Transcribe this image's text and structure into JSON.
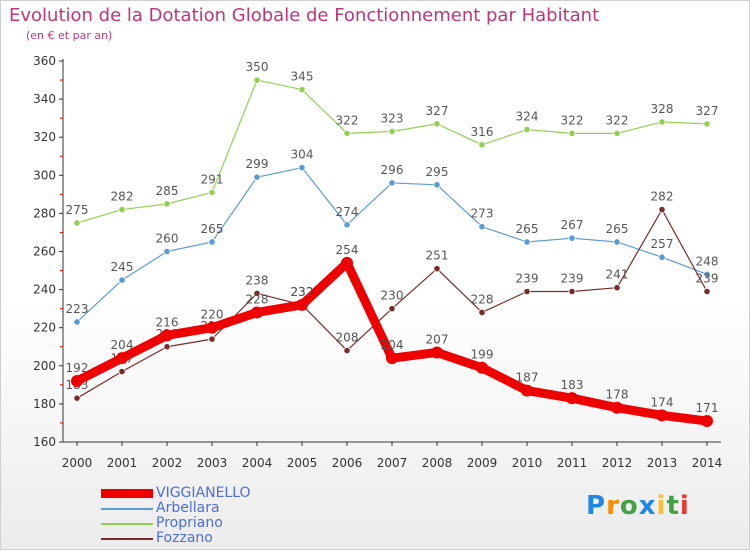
{
  "chart_data": {
    "type": "line",
    "title": "Evolution de la Dotation Globale de Fonctionnement par Habitant",
    "subtitle": "(en € et par an)",
    "xlabel": "",
    "ylabel": "",
    "x": [
      "2000",
      "2001",
      "2002",
      "2003",
      "2004",
      "2005",
      "2006",
      "2007",
      "2008",
      "2009",
      "2010",
      "2011",
      "2012",
      "2013",
      "2014"
    ],
    "ylim": [
      160,
      360
    ],
    "yticks": [
      160,
      180,
      200,
      220,
      240,
      260,
      280,
      300,
      320,
      340,
      360
    ],
    "grid": false,
    "legend_position": "bottom-left",
    "series": [
      {
        "name": "VIGGIANELLO",
        "color": "#ee0000",
        "emphasis": true,
        "values": [
          192,
          204,
          216,
          220,
          228,
          232,
          254,
          204,
          207,
          199,
          187,
          183,
          178,
          174,
          171
        ]
      },
      {
        "name": "Arbellara",
        "color": "#5b9bd5",
        "values": [
          223,
          245,
          260,
          265,
          299,
          304,
          274,
          296,
          295,
          273,
          265,
          267,
          265,
          257,
          248
        ]
      },
      {
        "name": "Propriano",
        "color": "#92d050",
        "values": [
          275,
          282,
          285,
          291,
          350,
          345,
          322,
          323,
          327,
          316,
          324,
          322,
          322,
          328,
          327
        ]
      },
      {
        "name": "Fozzano",
        "color": "#7a2a2a",
        "values": [
          183,
          197,
          210,
          214,
          238,
          232,
          208,
          230,
          251,
          228,
          239,
          239,
          241,
          282,
          239
        ]
      }
    ]
  },
  "brand": {
    "letters": [
      "P",
      "r",
      "o",
      "x",
      "i",
      "t",
      "i"
    ],
    "colors": [
      "#1e88e5",
      "#fb8c00",
      "#43a047",
      "#1e88e5",
      "#fbc02d",
      "#43a047",
      "#e53935"
    ]
  }
}
